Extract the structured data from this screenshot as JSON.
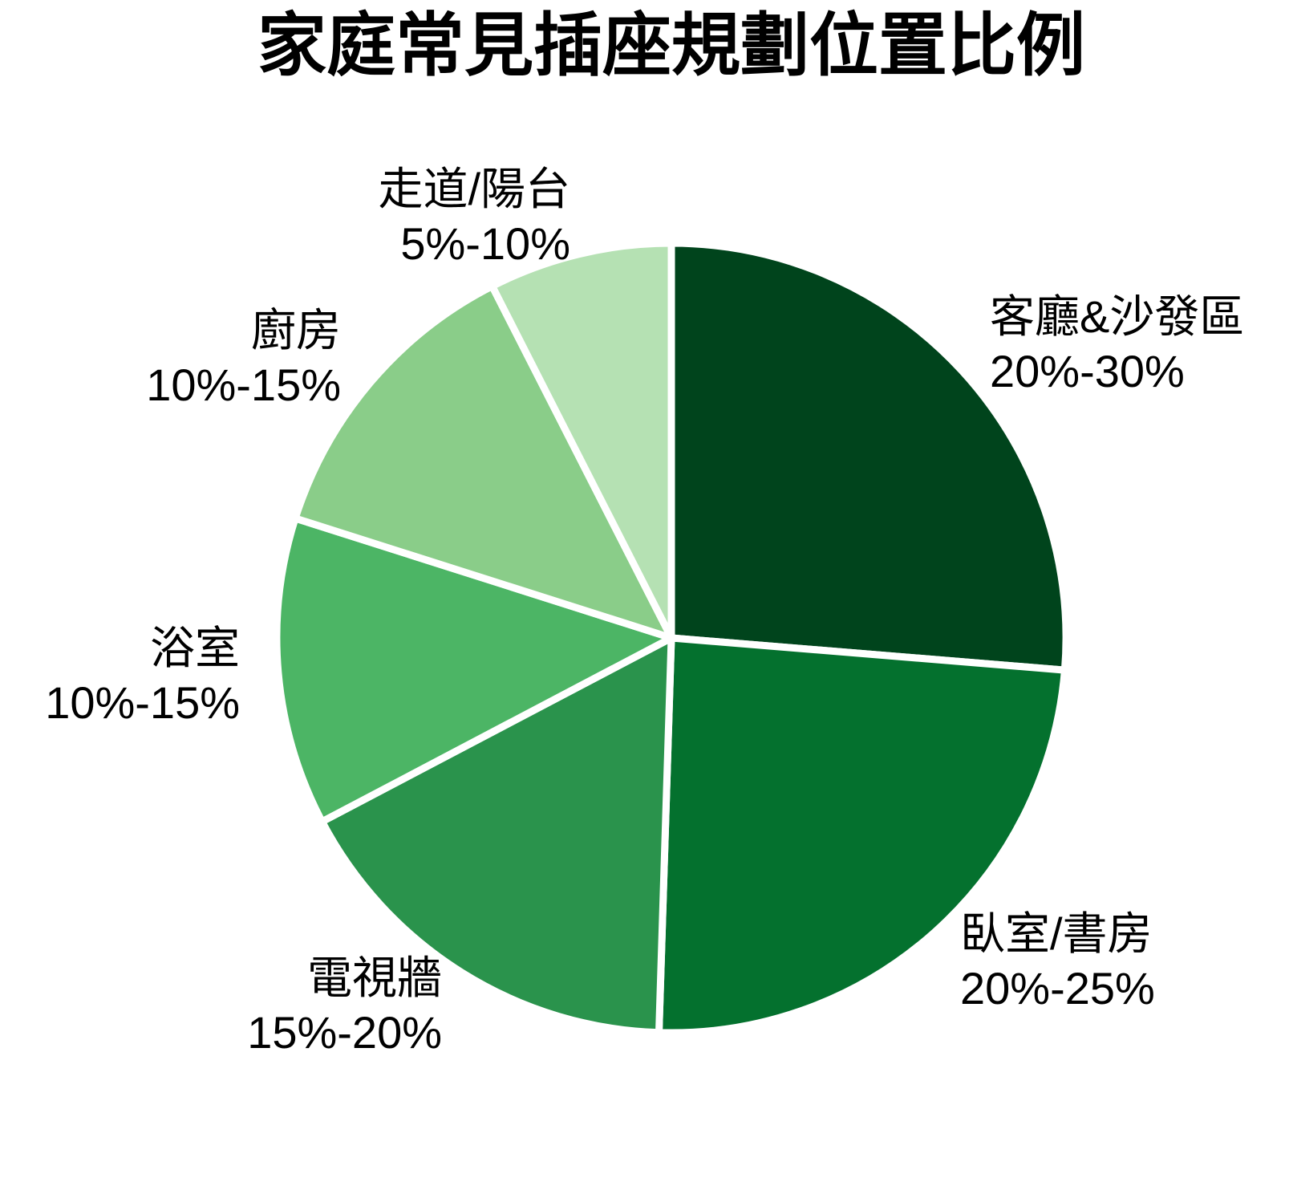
{
  "chart_data": {
    "type": "pie",
    "title": "家庭常見插座規劃位置比例",
    "background_color": "#FFFFFF",
    "divider_color": "#FFFFFF",
    "text_color": "#000000",
    "legend_position": "none",
    "label_position": "outside",
    "start_angle": "12 o'clock, clockwise",
    "slices": [
      {
        "label": "客廳&沙發區",
        "range": "20%-30%",
        "plotted_percent": 26.3,
        "color": "#00441C"
      },
      {
        "label": "臥室/書房",
        "range": "20%-25%",
        "plotted_percent": 24.2,
        "color": "#04712E"
      },
      {
        "label": "電視牆",
        "range": "15%-20%",
        "plotted_percent": 16.8,
        "color": "#2A934C"
      },
      {
        "label": "浴室",
        "range": "10%-15%",
        "plotted_percent": 12.6,
        "color": "#4CB565"
      },
      {
        "label": "廚房",
        "range": "10%-15%",
        "plotted_percent": 12.6,
        "color": "#8ACD89"
      },
      {
        "label": "走道/陽台",
        "range": "5%-10%",
        "plotted_percent": 7.5,
        "color": "#B5E1B3"
      }
    ]
  }
}
